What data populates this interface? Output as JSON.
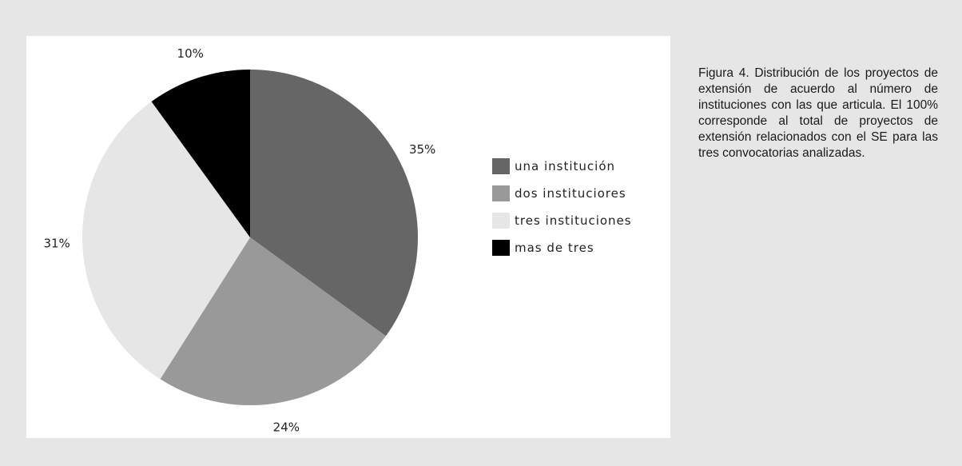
{
  "chart_data": {
    "type": "pie",
    "categories": [
      "una institución",
      "dos instituciores",
      "tres instituciones",
      "mas de tres"
    ],
    "values": [
      35,
      24,
      31,
      10
    ],
    "labels": [
      "35%",
      "24%",
      "31%",
      "10%"
    ],
    "colors": [
      "#666666",
      "#999999",
      "#e6e6e6",
      "#000000"
    ],
    "legend_position": "right",
    "start": "top, clockwise"
  },
  "caption": "Figura 4. Distribución de los proyectos de extensión de acuerdo al número de instituciones con las que articula. El 100% corresponde al total de proyectos de extensión relacionados con el SE para las tres convocatorias analizadas."
}
